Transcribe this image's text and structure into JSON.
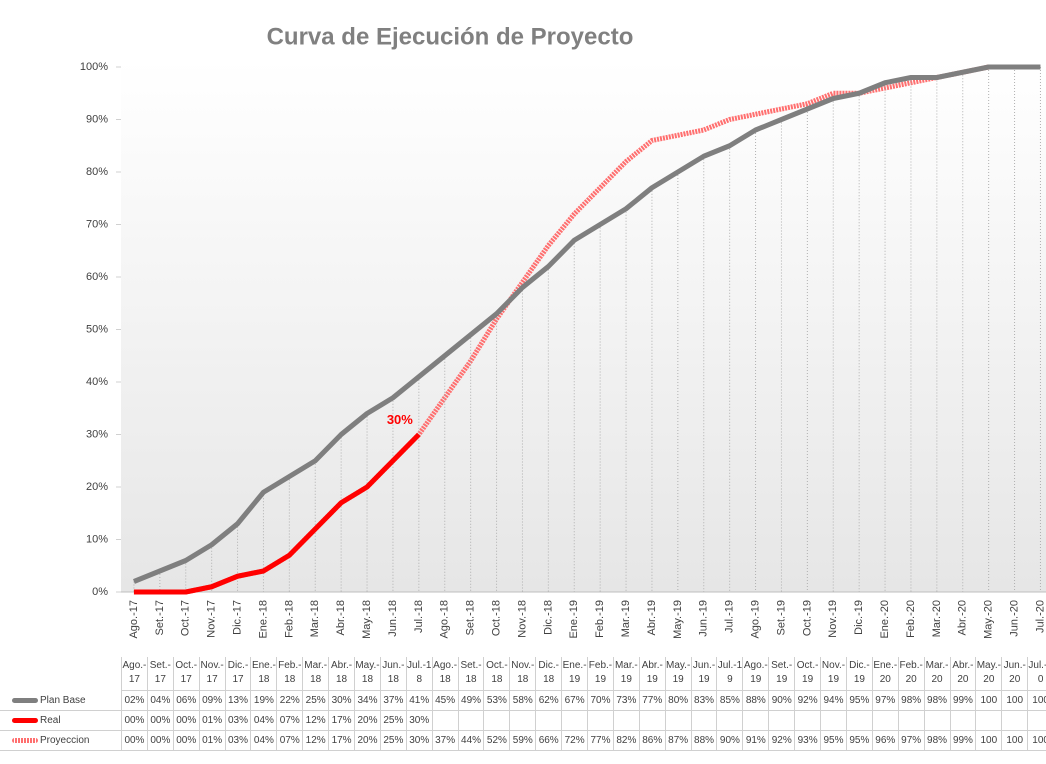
{
  "chart_data": {
    "type": "line",
    "title": "Curva de Ejecución de Proyecto",
    "categories": [
      "Ago.-17",
      "Set.-17",
      "Oct.-17",
      "Nov.-17",
      "Dic.-17",
      "Ene.-18",
      "Feb.-18",
      "Mar.-18",
      "Abr.-18",
      "May.-18",
      "Jun.-18",
      "Jul.-18",
      "Ago.-18",
      "Set.-18",
      "Oct.-18",
      "Nov.-18",
      "Dic.-18",
      "Ene.-19",
      "Feb.-19",
      "Mar.-19",
      "Abr.-19",
      "May.-19",
      "Jun.-19",
      "Jul.-19",
      "Ago.-19",
      "Set.-19",
      "Oct.-19",
      "Nov.-19",
      "Dic.-19",
      "Ene.-20",
      "Feb.-20",
      "Mar.-20",
      "Abr.-20",
      "May.-20",
      "Jun.-20",
      "Jul.-20"
    ],
    "series": [
      {
        "name": "Plan Base",
        "color": "#7f7f7f",
        "width": 5,
        "values": [
          2,
          4,
          6,
          9,
          13,
          19,
          22,
          25,
          30,
          34,
          37,
          41,
          45,
          49,
          53,
          58,
          62,
          67,
          70,
          73,
          77,
          80,
          83,
          85,
          88,
          90,
          92,
          94,
          95,
          97,
          98,
          98,
          99,
          100,
          100,
          100
        ],
        "value_labels": [
          "02%",
          "04%",
          "06%",
          "09%",
          "13%",
          "19%",
          "22%",
          "25%",
          "30%",
          "34%",
          "37%",
          "41%",
          "45%",
          "49%",
          "53%",
          "58%",
          "62%",
          "67%",
          "70%",
          "73%",
          "77%",
          "80%",
          "83%",
          "85%",
          "88%",
          "90%",
          "92%",
          "94%",
          "95%",
          "97%",
          "98%",
          "98%",
          "99%",
          "100",
          "100",
          "100"
        ]
      },
      {
        "name": "Real",
        "color": "#ff0000",
        "width": 5,
        "values": [
          0,
          0,
          0,
          1,
          3,
          4,
          7,
          12,
          17,
          20,
          25,
          30,
          null,
          null,
          null,
          null,
          null,
          null,
          null,
          null,
          null,
          null,
          null,
          null,
          null,
          null,
          null,
          null,
          null,
          null,
          null,
          null,
          null,
          null,
          null,
          null
        ],
        "value_labels": [
          "00%",
          "00%",
          "00%",
          "01%",
          "03%",
          "04%",
          "07%",
          "12%",
          "17%",
          "20%",
          "25%",
          "30%",
          null,
          null,
          null,
          null,
          null,
          null,
          null,
          null,
          null,
          null,
          null,
          null,
          null,
          null,
          null,
          null,
          null,
          null,
          null,
          null,
          null,
          null,
          null,
          null
        ]
      },
      {
        "name": "Proyeccion",
        "color": "#ff6f6f",
        "width": 5,
        "dashed": true,
        "values": [
          0,
          0,
          0,
          1,
          3,
          4,
          7,
          12,
          17,
          20,
          25,
          30,
          37,
          44,
          52,
          59,
          66,
          72,
          77,
          82,
          86,
          87,
          88,
          90,
          91,
          92,
          93,
          95,
          95,
          96,
          97,
          98,
          99,
          100,
          100,
          100
        ],
        "value_labels": [
          "00%",
          "00%",
          "00%",
          "01%",
          "03%",
          "04%",
          "07%",
          "12%",
          "17%",
          "20%",
          "25%",
          "30%",
          "37%",
          "44%",
          "52%",
          "59%",
          "66%",
          "72%",
          "77%",
          "82%",
          "86%",
          "87%",
          "88%",
          "90%",
          "91%",
          "92%",
          "93%",
          "95%",
          "95%",
          "96%",
          "97%",
          "98%",
          "99%",
          "100",
          "100",
          "100"
        ]
      }
    ],
    "annotation": "30%",
    "ylim": [
      0,
      100
    ],
    "yticks": [
      {
        "value": 0,
        "label": "0%"
      },
      {
        "value": 10,
        "label": "10%"
      },
      {
        "value": 20,
        "label": "20%"
      },
      {
        "value": 30,
        "label": "30%"
      },
      {
        "value": 40,
        "label": "40%"
      },
      {
        "value": 50,
        "label": "50%"
      },
      {
        "value": 60,
        "label": "60%"
      },
      {
        "value": 70,
        "label": "70%"
      },
      {
        "value": 80,
        "label": "80%"
      },
      {
        "value": 90,
        "label": "90%"
      },
      {
        "value": 100,
        "label": "100%"
      }
    ],
    "drop_lines": true
  }
}
